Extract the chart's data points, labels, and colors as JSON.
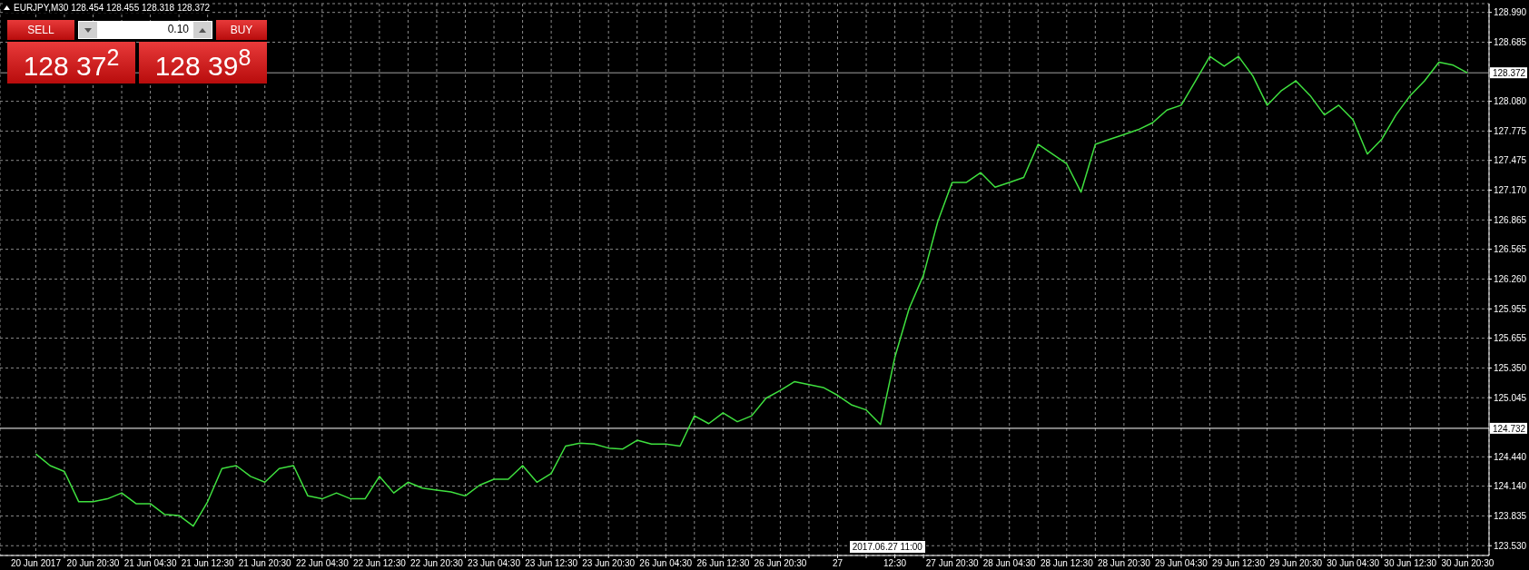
{
  "chart_data": {
    "type": "line",
    "title": "EURJPY,M30  128.454 128.455 128.318 128.372",
    "categories": [
      "20 Jun 2017",
      null,
      null,
      null,
      "20 Jun 20:30",
      null,
      null,
      null,
      "21 Jun 04:30",
      null,
      null,
      null,
      "21 Jun 12:30",
      null,
      null,
      null,
      "21 Jun 20:30",
      null,
      null,
      null,
      "22 Jun 04:30",
      null,
      null,
      null,
      "22 Jun 12:30",
      null,
      null,
      null,
      "22 Jun 20:30",
      null,
      null,
      null,
      "23 Jun 04:30",
      null,
      null,
      null,
      "23 Jun 12:30",
      null,
      null,
      null,
      "23 Jun 20:30",
      null,
      null,
      null,
      "26 Jun 04:30",
      null,
      null,
      null,
      "26 Jun 12:30",
      null,
      null,
      null,
      "26 Jun 20:30",
      null,
      null,
      null,
      "27",
      null,
      null,
      null,
      "12:30",
      null,
      null,
      null,
      "27 Jun 20:30",
      null,
      null,
      null,
      "28 Jun 04:30",
      null,
      null,
      null,
      "28 Jun 12:30",
      null,
      null,
      null,
      "28 Jun 20:30",
      null,
      null,
      null,
      "29 Jun 04:30",
      null,
      null,
      null,
      "29 Jun 12:30",
      null,
      null,
      null,
      "29 Jun 20:30",
      null,
      null,
      null,
      "30 Jun 04:30",
      null,
      null,
      null,
      "30 Jun 12:30",
      null,
      null,
      null,
      "30 Jun 20:30"
    ],
    "values": [
      124.47,
      124.35,
      124.29,
      123.98,
      123.98,
      124.01,
      124.07,
      123.96,
      123.96,
      123.85,
      123.84,
      123.73,
      123.98,
      124.32,
      124.35,
      124.24,
      124.18,
      124.32,
      124.35,
      124.04,
      124.01,
      124.07,
      124.01,
      124.01,
      124.24,
      124.07,
      124.18,
      124.12,
      124.1,
      124.08,
      124.04,
      124.15,
      124.21,
      124.21,
      124.35,
      124.18,
      124.27,
      124.55,
      124.58,
      124.57,
      124.53,
      124.52,
      124.61,
      124.57,
      124.57,
      124.55,
      124.86,
      124.78,
      124.89,
      124.8,
      124.86,
      125.04,
      125.12,
      125.21,
      125.18,
      125.15,
      125.07,
      124.97,
      124.92,
      124.77,
      125.46,
      125.96,
      126.3,
      126.85,
      127.25,
      127.25,
      127.35,
      127.2,
      127.25,
      127.3,
      127.64,
      127.54,
      127.44,
      127.15,
      127.64,
      127.69,
      127.74,
      127.79,
      127.86,
      127.99,
      128.04,
      128.29,
      128.54,
      128.44,
      128.54,
      128.34,
      128.04,
      128.19,
      128.29,
      128.14,
      127.94,
      128.04,
      127.89,
      127.54,
      127.69,
      127.94,
      128.14,
      128.29,
      128.48,
      128.45,
      128.37
    ],
    "color": "#3fe03f",
    "ylim": [
      123.43,
      129.08
    ],
    "yticks": [
      {
        "value": 123.53,
        "label": "123.530"
      },
      {
        "value": 123.835,
        "label": "123.835"
      },
      {
        "value": 124.14,
        "label": "124.140"
      },
      {
        "value": 124.44,
        "label": "124.440"
      },
      {
        "value": 125.045,
        "label": "125.045"
      },
      {
        "value": 125.35,
        "label": "125.350"
      },
      {
        "value": 125.655,
        "label": "125.655"
      },
      {
        "value": 125.955,
        "label": "125.955"
      },
      {
        "value": 126.26,
        "label": "126.260"
      },
      {
        "value": 126.565,
        "label": "126.565"
      },
      {
        "value": 126.865,
        "label": "126.865"
      },
      {
        "value": 127.17,
        "label": "127.170"
      },
      {
        "value": 127.475,
        "label": "127.475"
      },
      {
        "value": 127.775,
        "label": "127.775"
      },
      {
        "value": 128.08,
        "label": "128.080"
      },
      {
        "value": 128.685,
        "label": "128.685"
      },
      {
        "value": 128.99,
        "label": "128.990"
      }
    ],
    "grid": true,
    "ref_lines": [
      {
        "axis": "y",
        "value": 124.732,
        "label": "124.732",
        "color": "#ffffff"
      },
      {
        "axis": "y",
        "value": 128.372,
        "label": "128.372",
        "color": "#a0a0a0"
      }
    ],
    "annotations": [
      "SELL",
      "0.10",
      "BUY",
      "128 37$^{2}$",
      "128 39$^{8}$",
      "2017.06.27 11:00"
    ]
  }
}
